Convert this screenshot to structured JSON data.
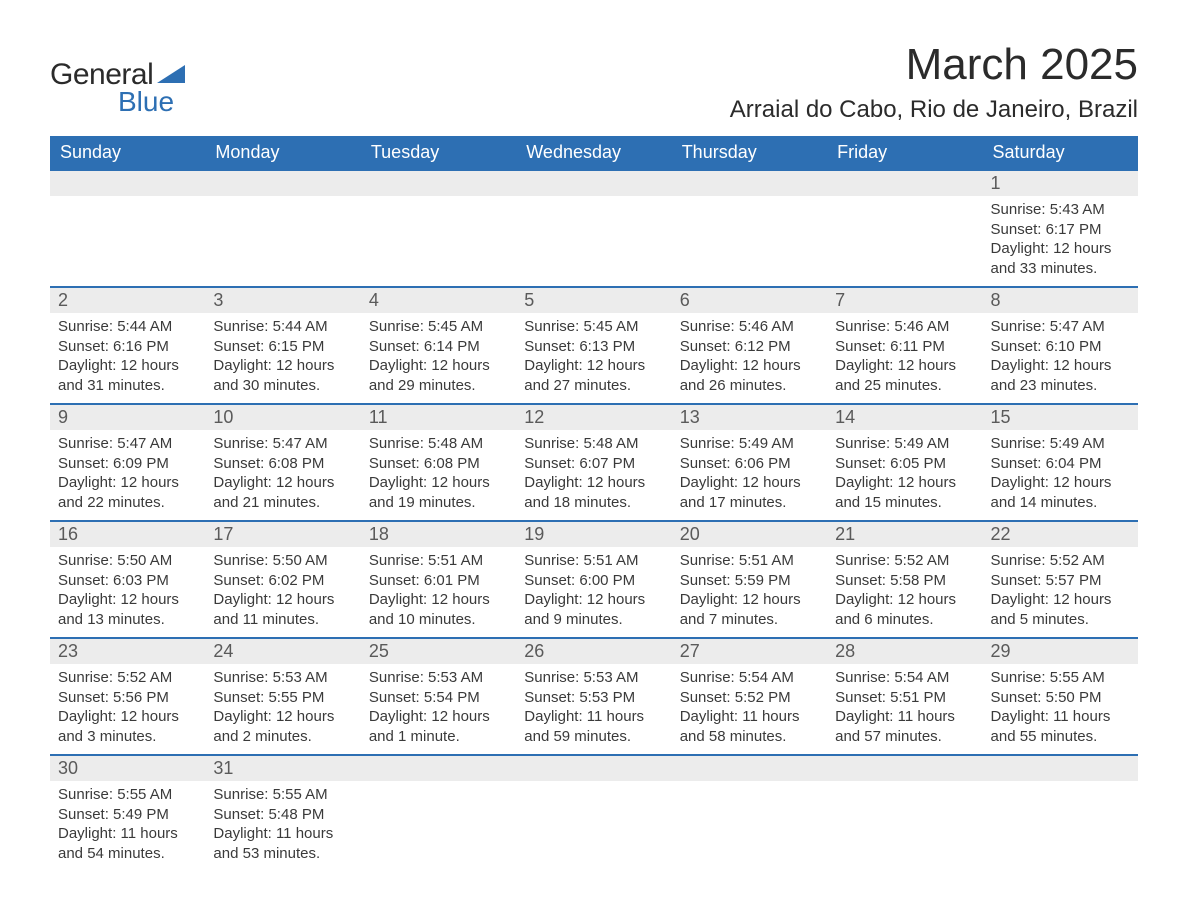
{
  "logo": {
    "word1": "General",
    "word2": "Blue",
    "brand_color": "#2d6fb3"
  },
  "title": "March 2025",
  "location": "Arraial do Cabo, Rio de Janeiro, Brazil",
  "colors": {
    "header_bg": "#2d6fb3",
    "header_text": "#ffffff",
    "day_row_bg": "#ececec",
    "body_text": "#3a3a3a",
    "border": "#2d6fb3"
  },
  "weekdays": [
    "Sunday",
    "Monday",
    "Tuesday",
    "Wednesday",
    "Thursday",
    "Friday",
    "Saturday"
  ],
  "weeks": [
    [
      null,
      null,
      null,
      null,
      null,
      null,
      {
        "d": "1",
        "sr": "5:43 AM",
        "ss": "6:17 PM",
        "dl": "12 hours and 33 minutes."
      }
    ],
    [
      {
        "d": "2",
        "sr": "5:44 AM",
        "ss": "6:16 PM",
        "dl": "12 hours and 31 minutes."
      },
      {
        "d": "3",
        "sr": "5:44 AM",
        "ss": "6:15 PM",
        "dl": "12 hours and 30 minutes."
      },
      {
        "d": "4",
        "sr": "5:45 AM",
        "ss": "6:14 PM",
        "dl": "12 hours and 29 minutes."
      },
      {
        "d": "5",
        "sr": "5:45 AM",
        "ss": "6:13 PM",
        "dl": "12 hours and 27 minutes."
      },
      {
        "d": "6",
        "sr": "5:46 AM",
        "ss": "6:12 PM",
        "dl": "12 hours and 26 minutes."
      },
      {
        "d": "7",
        "sr": "5:46 AM",
        "ss": "6:11 PM",
        "dl": "12 hours and 25 minutes."
      },
      {
        "d": "8",
        "sr": "5:47 AM",
        "ss": "6:10 PM",
        "dl": "12 hours and 23 minutes."
      }
    ],
    [
      {
        "d": "9",
        "sr": "5:47 AM",
        "ss": "6:09 PM",
        "dl": "12 hours and 22 minutes."
      },
      {
        "d": "10",
        "sr": "5:47 AM",
        "ss": "6:08 PM",
        "dl": "12 hours and 21 minutes."
      },
      {
        "d": "11",
        "sr": "5:48 AM",
        "ss": "6:08 PM",
        "dl": "12 hours and 19 minutes."
      },
      {
        "d": "12",
        "sr": "5:48 AM",
        "ss": "6:07 PM",
        "dl": "12 hours and 18 minutes."
      },
      {
        "d": "13",
        "sr": "5:49 AM",
        "ss": "6:06 PM",
        "dl": "12 hours and 17 minutes."
      },
      {
        "d": "14",
        "sr": "5:49 AM",
        "ss": "6:05 PM",
        "dl": "12 hours and 15 minutes."
      },
      {
        "d": "15",
        "sr": "5:49 AM",
        "ss": "6:04 PM",
        "dl": "12 hours and 14 minutes."
      }
    ],
    [
      {
        "d": "16",
        "sr": "5:50 AM",
        "ss": "6:03 PM",
        "dl": "12 hours and 13 minutes."
      },
      {
        "d": "17",
        "sr": "5:50 AM",
        "ss": "6:02 PM",
        "dl": "12 hours and 11 minutes."
      },
      {
        "d": "18",
        "sr": "5:51 AM",
        "ss": "6:01 PM",
        "dl": "12 hours and 10 minutes."
      },
      {
        "d": "19",
        "sr": "5:51 AM",
        "ss": "6:00 PM",
        "dl": "12 hours and 9 minutes."
      },
      {
        "d": "20",
        "sr": "5:51 AM",
        "ss": "5:59 PM",
        "dl": "12 hours and 7 minutes."
      },
      {
        "d": "21",
        "sr": "5:52 AM",
        "ss": "5:58 PM",
        "dl": "12 hours and 6 minutes."
      },
      {
        "d": "22",
        "sr": "5:52 AM",
        "ss": "5:57 PM",
        "dl": "12 hours and 5 minutes."
      }
    ],
    [
      {
        "d": "23",
        "sr": "5:52 AM",
        "ss": "5:56 PM",
        "dl": "12 hours and 3 minutes."
      },
      {
        "d": "24",
        "sr": "5:53 AM",
        "ss": "5:55 PM",
        "dl": "12 hours and 2 minutes."
      },
      {
        "d": "25",
        "sr": "5:53 AM",
        "ss": "5:54 PM",
        "dl": "12 hours and 1 minute."
      },
      {
        "d": "26",
        "sr": "5:53 AM",
        "ss": "5:53 PM",
        "dl": "11 hours and 59 minutes."
      },
      {
        "d": "27",
        "sr": "5:54 AM",
        "ss": "5:52 PM",
        "dl": "11 hours and 58 minutes."
      },
      {
        "d": "28",
        "sr": "5:54 AM",
        "ss": "5:51 PM",
        "dl": "11 hours and 57 minutes."
      },
      {
        "d": "29",
        "sr": "5:55 AM",
        "ss": "5:50 PM",
        "dl": "11 hours and 55 minutes."
      }
    ],
    [
      {
        "d": "30",
        "sr": "5:55 AM",
        "ss": "5:49 PM",
        "dl": "11 hours and 54 minutes."
      },
      {
        "d": "31",
        "sr": "5:55 AM",
        "ss": "5:48 PM",
        "dl": "11 hours and 53 minutes."
      },
      null,
      null,
      null,
      null,
      null
    ]
  ],
  "labels": {
    "sunrise": "Sunrise: ",
    "sunset": "Sunset: ",
    "daylight": "Daylight: "
  }
}
